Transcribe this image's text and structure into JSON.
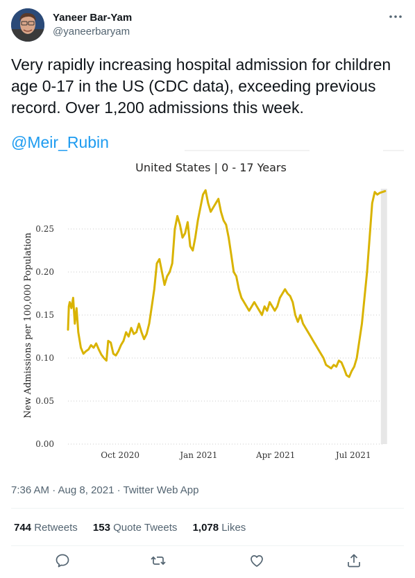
{
  "author": {
    "display_name": "Yaneer Bar-Yam",
    "handle": "@yaneerbaryam"
  },
  "tweet": {
    "text": "Very rapidly increasing hospital admission for children age 0-17 in the US (CDC data), exceeding previous record. Over 1,200 admissions this week.",
    "mention": "@Meir_Rubin",
    "timestamp": "7:36 AM · Aug 8, 2021 · Twitter Web App"
  },
  "stats": {
    "retweets": "744",
    "retweets_label": "Retweets",
    "quote_tweets": "153",
    "quote_tweets_label": "Quote Tweets",
    "likes": "1,078",
    "likes_label": "Likes"
  },
  "icons": [
    "more-icon",
    "reply-icon",
    "retweet-icon",
    "like-icon",
    "share-icon"
  ],
  "chart_data": {
    "type": "line",
    "title": "United States | 0 - 17 Years",
    "xlabel": "",
    "ylabel": "New Admissions per 100,000 Population",
    "ylim": [
      0,
      0.3
    ],
    "yticks": [
      0.0,
      0.05,
      0.1,
      0.15,
      0.2,
      0.25
    ],
    "ytick_labels": [
      "0.00",
      "0.05",
      "0.10",
      "0.15",
      "0.20",
      "0.25"
    ],
    "xticks": [
      "2020-10-01",
      "2021-01-01",
      "2021-04-01",
      "2021-07-01"
    ],
    "xtick_labels": [
      "Oct 2020",
      "Jan 2021",
      "Apr 2021",
      "Jul 2021"
    ],
    "xlim": [
      "2020-08-01",
      "2021-08-08"
    ],
    "grid": true,
    "line_color": "#d9b300",
    "series": [
      {
        "x": [
          "2020-08-01",
          "2020-08-02",
          "2020-08-03",
          "2020-08-05",
          "2020-08-07",
          "2020-08-09",
          "2020-08-11",
          "2020-08-13",
          "2020-08-16",
          "2020-08-19",
          "2020-08-22",
          "2020-08-25",
          "2020-08-28",
          "2020-08-31",
          "2020-09-03",
          "2020-09-06",
          "2020-09-09",
          "2020-09-12",
          "2020-09-15",
          "2020-09-17",
          "2020-09-20",
          "2020-09-23",
          "2020-09-26",
          "2020-09-29",
          "2020-10-02",
          "2020-10-05",
          "2020-10-08",
          "2020-10-11",
          "2020-10-14",
          "2020-10-17",
          "2020-10-20",
          "2020-10-23",
          "2020-10-26",
          "2020-10-29",
          "2020-11-01",
          "2020-11-04",
          "2020-11-07",
          "2020-11-10",
          "2020-11-13",
          "2020-11-16",
          "2020-11-19",
          "2020-11-22",
          "2020-11-25",
          "2020-11-28",
          "2020-12-01",
          "2020-12-04",
          "2020-12-07",
          "2020-12-10",
          "2020-12-13",
          "2020-12-16",
          "2020-12-19",
          "2020-12-22",
          "2020-12-25",
          "2020-12-28",
          "2020-12-31",
          "2021-01-03",
          "2021-01-06",
          "2021-01-09",
          "2021-01-12",
          "2021-01-15",
          "2021-01-18",
          "2021-01-21",
          "2021-01-24",
          "2021-01-27",
          "2021-01-30",
          "2021-02-02",
          "2021-02-05",
          "2021-02-08",
          "2021-02-11",
          "2021-02-14",
          "2021-02-17",
          "2021-02-20",
          "2021-02-23",
          "2021-02-26",
          "2021-03-01",
          "2021-03-04",
          "2021-03-07",
          "2021-03-10",
          "2021-03-13",
          "2021-03-16",
          "2021-03-19",
          "2021-03-22",
          "2021-03-25",
          "2021-03-28",
          "2021-03-31",
          "2021-04-03",
          "2021-04-06",
          "2021-04-09",
          "2021-04-12",
          "2021-04-15",
          "2021-04-18",
          "2021-04-21",
          "2021-04-24",
          "2021-04-27",
          "2021-04-30",
          "2021-05-03",
          "2021-05-06",
          "2021-05-09",
          "2021-05-12",
          "2021-05-15",
          "2021-05-18",
          "2021-05-21",
          "2021-05-24",
          "2021-05-27",
          "2021-05-30",
          "2021-06-02",
          "2021-06-05",
          "2021-06-08",
          "2021-06-11",
          "2021-06-14",
          "2021-06-17",
          "2021-06-20",
          "2021-06-23",
          "2021-06-26",
          "2021-06-29",
          "2021-07-02",
          "2021-07-05",
          "2021-07-08",
          "2021-07-11",
          "2021-07-14",
          "2021-07-17",
          "2021-07-20",
          "2021-07-23",
          "2021-07-26",
          "2021-07-29",
          "2021-08-01",
          "2021-08-04",
          "2021-08-07"
        ],
        "y": [
          0.133,
          0.16,
          0.165,
          0.158,
          0.17,
          0.14,
          0.158,
          0.13,
          0.112,
          0.105,
          0.108,
          0.11,
          0.115,
          0.112,
          0.117,
          0.11,
          0.104,
          0.1,
          0.097,
          0.12,
          0.118,
          0.105,
          0.103,
          0.108,
          0.115,
          0.12,
          0.13,
          0.125,
          0.135,
          0.128,
          0.13,
          0.14,
          0.13,
          0.122,
          0.128,
          0.14,
          0.16,
          0.18,
          0.21,
          0.215,
          0.2,
          0.185,
          0.195,
          0.2,
          0.21,
          0.25,
          0.265,
          0.255,
          0.24,
          0.245,
          0.258,
          0.23,
          0.225,
          0.24,
          0.26,
          0.275,
          0.29,
          0.295,
          0.28,
          0.27,
          0.275,
          0.28,
          0.285,
          0.27,
          0.26,
          0.255,
          0.24,
          0.22,
          0.2,
          0.195,
          0.18,
          0.17,
          0.165,
          0.16,
          0.155,
          0.16,
          0.165,
          0.16,
          0.155,
          0.15,
          0.16,
          0.155,
          0.165,
          0.16,
          0.155,
          0.16,
          0.17,
          0.175,
          0.18,
          0.175,
          0.172,
          0.165,
          0.15,
          0.142,
          0.15,
          0.14,
          0.135,
          0.13,
          0.125,
          0.12,
          0.115,
          0.11,
          0.105,
          0.1,
          0.092,
          0.09,
          0.088,
          0.092,
          0.09,
          0.097,
          0.095,
          0.088,
          0.08,
          0.078,
          0.085,
          0.09,
          0.1,
          0.12,
          0.14,
          0.17,
          0.2,
          0.24,
          0.28,
          0.293,
          0.29,
          0.292,
          0.293,
          0.294
        ]
      }
    ]
  }
}
